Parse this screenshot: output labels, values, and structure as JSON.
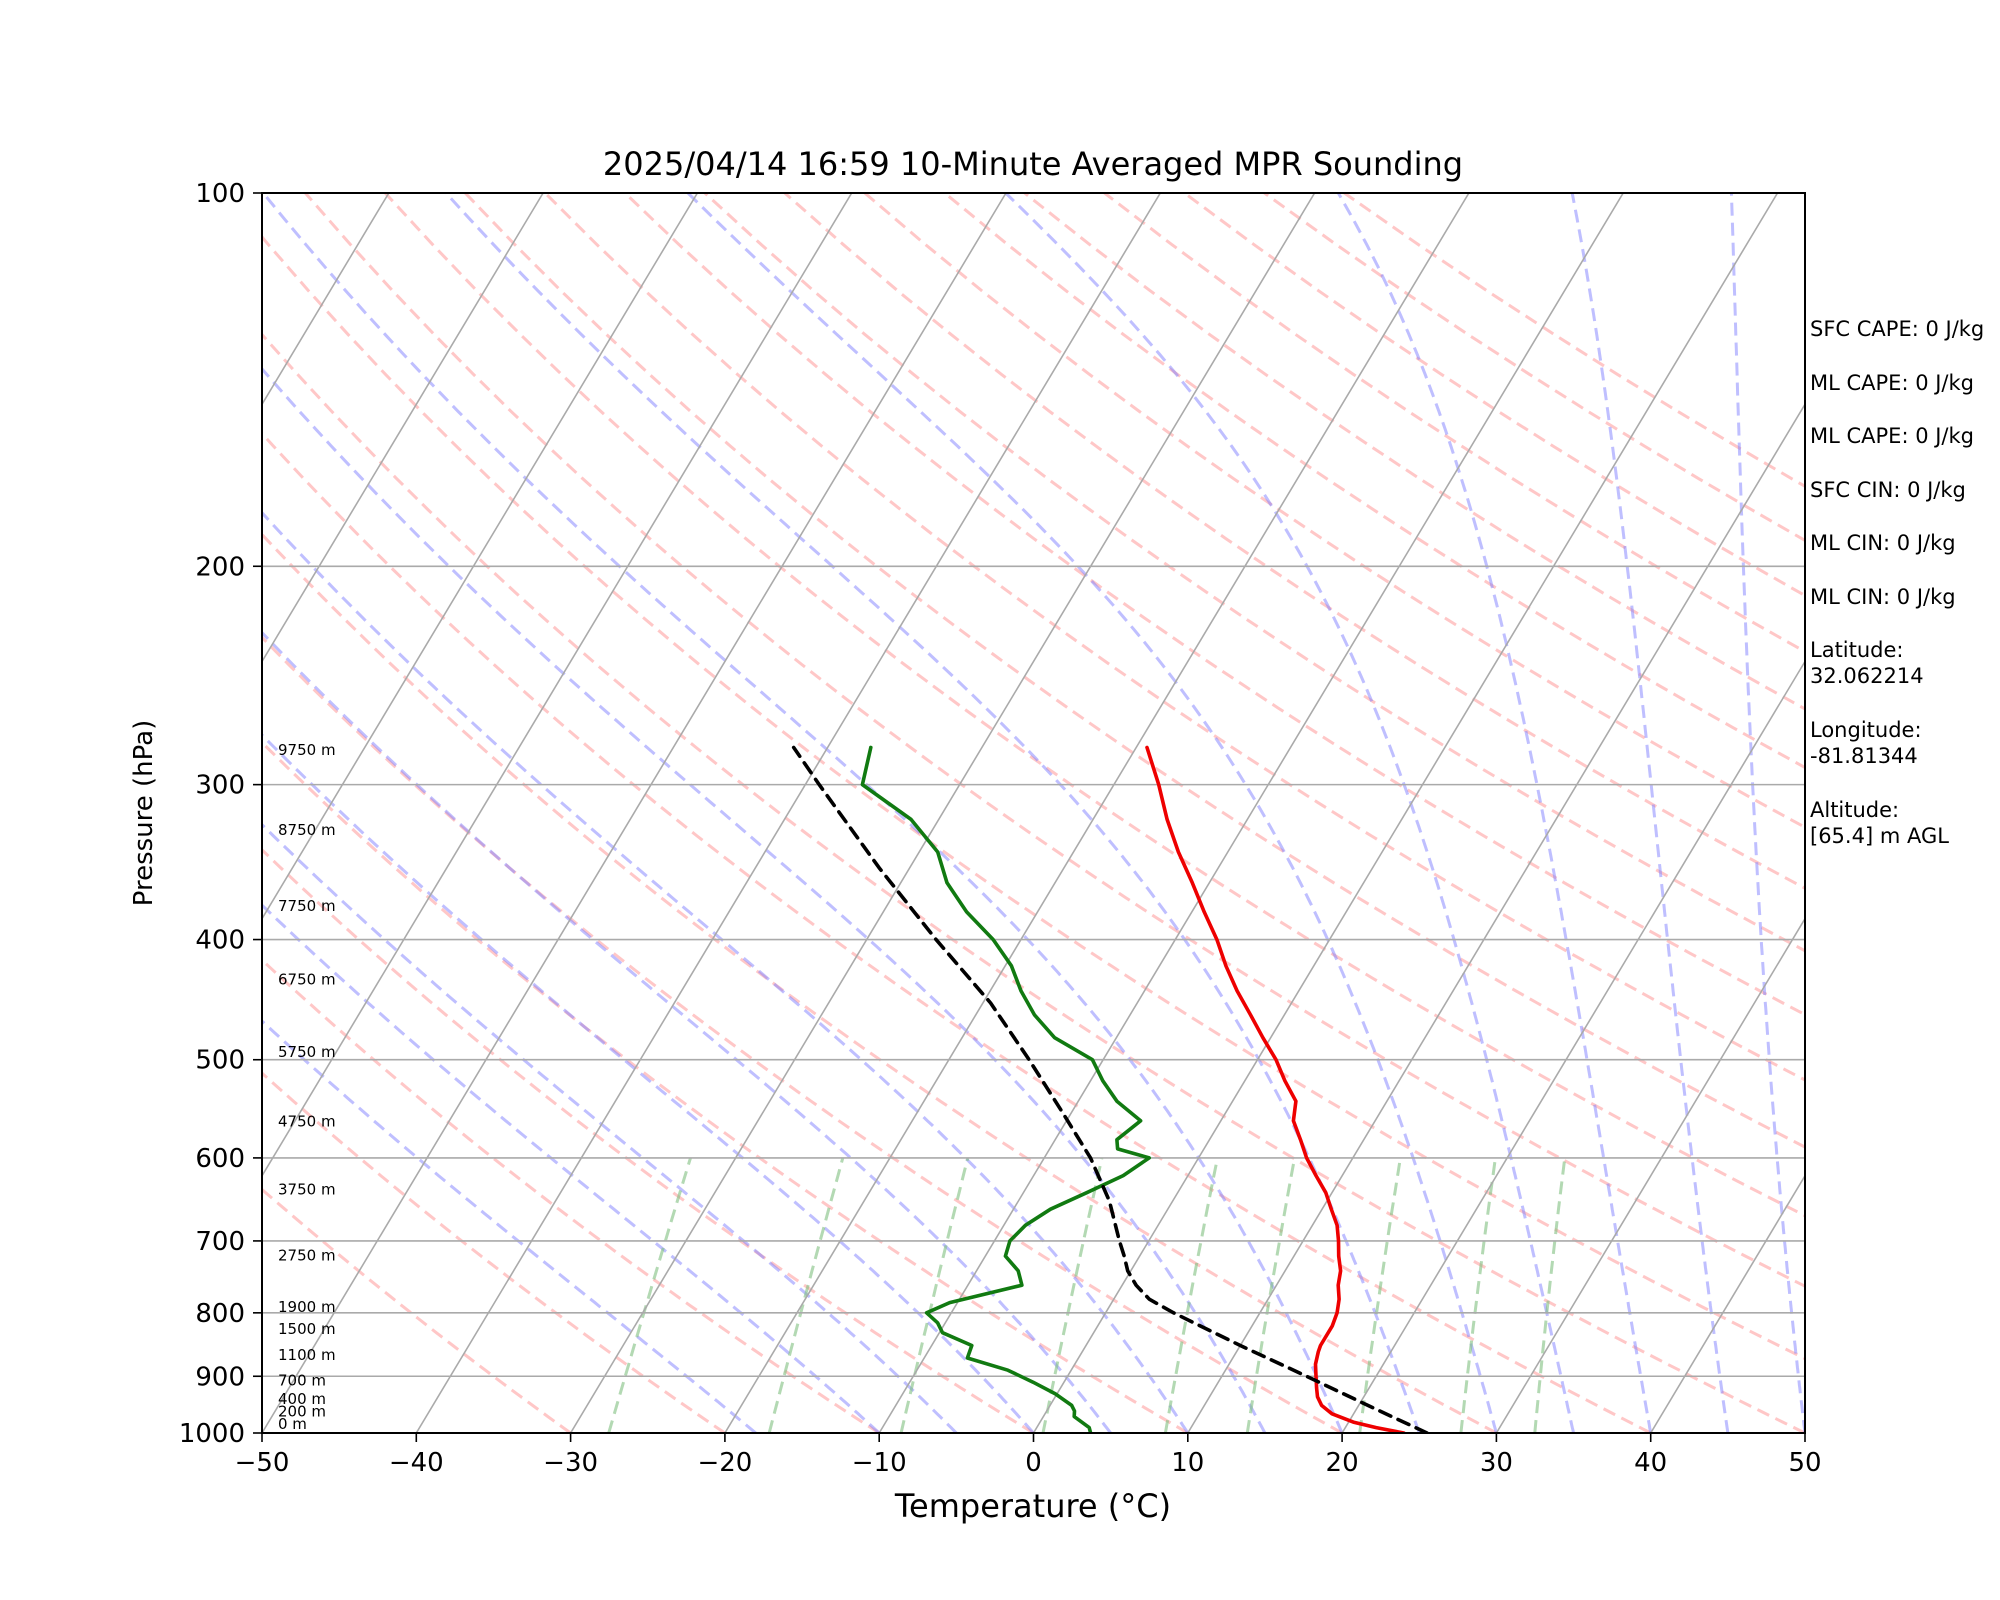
{
  "chart_data": {
    "type": "line",
    "title": "2025/04/14 16:59 10-Minute Averaged MPR Sounding",
    "xlabel": "Temperature (°C)",
    "ylabel": "Pressure (hPa)",
    "xlim": [
      -50,
      50
    ],
    "ylim": [
      1000,
      100
    ],
    "y_scale": "log",
    "skew": true,
    "x_ticks": [
      "−50",
      "−40",
      "−30",
      "−20",
      "−10",
      "0",
      "10",
      "20",
      "30",
      "40",
      "50"
    ],
    "y_ticks": [
      "100",
      "200",
      "300",
      "400",
      "500",
      "600",
      "700",
      "800",
      "900",
      "1000"
    ],
    "grid": true,
    "colors": {
      "temperature": "#ee0000",
      "dewpoint": "#117a11",
      "parcel": "#000000",
      "isotherm": "#aaaaaa",
      "dry_adiabat": "#ff9999",
      "moist_adiabat": "#8080ff",
      "mixing_ratio": "#80c080"
    },
    "height_labels": [
      {
        "text": "0 m",
        "p": 1000
      },
      {
        "text": "200 m",
        "p": 977
      },
      {
        "text": "400 m",
        "p": 955
      },
      {
        "text": "700 m",
        "p": 922
      },
      {
        "text": "1100 m",
        "p": 880
      },
      {
        "text": "1500 m",
        "p": 838
      },
      {
        "text": "1900 m",
        "p": 805
      },
      {
        "text": "2750 m",
        "p": 731
      },
      {
        "text": "3750 m",
        "p": 647
      },
      {
        "text": "4750 m",
        "p": 570
      },
      {
        "text": "5750 m",
        "p": 501
      },
      {
        "text": "6750 m",
        "p": 438
      },
      {
        "text": "7750 m",
        "p": 382
      },
      {
        "text": "8750 m",
        "p": 332
      },
      {
        "text": "9750 m",
        "p": 286
      }
    ],
    "series": [
      {
        "key": "temperature",
        "p": [
          1000,
          990,
          980,
          965,
          950,
          935,
          920,
          900,
          880,
          860,
          850,
          820,
          800,
          780,
          760,
          740,
          720,
          700,
          680,
          660,
          640,
          620,
          600,
          580,
          560,
          540,
          520,
          500,
          480,
          460,
          440,
          420,
          400,
          380,
          360,
          340,
          320,
          300,
          280
        ],
        "t": [
          24.0,
          22.0,
          20.3,
          18.6,
          17.6,
          17.0,
          16.6,
          16.1,
          15.6,
          15.3,
          15.2,
          15.2,
          15.0,
          14.6,
          14.0,
          13.6,
          12.9,
          12.3,
          11.6,
          10.6,
          9.6,
          8.3,
          7.0,
          5.9,
          4.7,
          4.1,
          2.6,
          1.2,
          -0.5,
          -2.2,
          -4.0,
          -5.7,
          -7.3,
          -9.2,
          -11.1,
          -13.2,
          -15.2,
          -17.1,
          -19.3
        ]
      },
      {
        "key": "dewpoint",
        "p": [
          1000,
          990,
          980,
          970,
          960,
          950,
          930,
          910,
          890,
          870,
          850,
          830,
          815,
          800,
          785,
          760,
          740,
          720,
          700,
          680,
          660,
          640,
          620,
          600,
          590,
          580,
          560,
          540,
          520,
          500,
          480,
          460,
          440,
          420,
          400,
          380,
          360,
          340,
          320,
          300,
          280
        ],
        "t": [
          3.7,
          3.4,
          2.7,
          2.0,
          1.8,
          1.4,
          -0.1,
          -2.0,
          -4.1,
          -7.2,
          -7.4,
          -9.8,
          -10.5,
          -11.6,
          -10.5,
          -6.5,
          -7.3,
          -8.7,
          -9.0,
          -8.6,
          -7.6,
          -5.9,
          -4.2,
          -3.2,
          -5.6,
          -6.0,
          -5.2,
          -7.5,
          -9.2,
          -10.7,
          -14.0,
          -16.2,
          -18.0,
          -19.6,
          -21.8,
          -24.6,
          -27.0,
          -28.8,
          -31.8,
          -36.3,
          -37.2
        ]
      },
      {
        "key": "parcel",
        "p": [
          1000,
          950,
          900,
          850,
          800,
          780,
          760,
          740,
          720,
          700,
          650,
          600,
          550,
          500,
          450,
          400,
          350,
          300,
          280
        ],
        "t": [
          25.5,
          20.6,
          15.5,
          10.0,
          4.4,
          2.3,
          0.9,
          -0.2,
          -1.0,
          -1.9,
          -4.1,
          -7.0,
          -10.7,
          -14.8,
          -19.5,
          -25.5,
          -32.0,
          -39.1,
          -42.2
        ]
      }
    ]
  },
  "info": {
    "sfc_cape": "SFC CAPE: 0 J/kg",
    "ml_cape_1": "ML CAPE: 0 J/kg",
    "ml_cape_2": "ML CAPE: 0 J/kg",
    "sfc_cin": "SFC CIN: 0 J/kg",
    "ml_cin_1": "ML CIN: 0 J/kg",
    "ml_cin_2": "ML CIN: 0 J/kg",
    "latitude_label": "Latitude:",
    "latitude_value": "32.062214",
    "longitude_label": "Longitude:",
    "longitude_value": "-81.81344",
    "altitude_label": "Altitude:",
    "altitude_value": "[65.4] m AGL"
  }
}
